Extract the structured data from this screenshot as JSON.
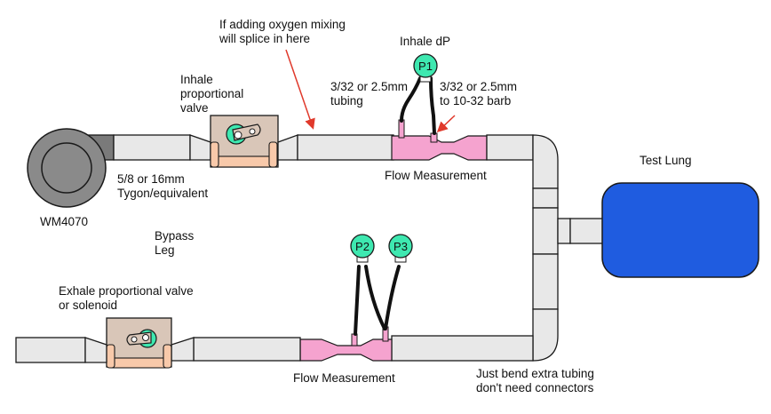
{
  "labels": {
    "oxygen_note_line1": "If adding oxygen mixing",
    "oxygen_note_line2": "will splice in here",
    "inhale_dp": "Inhale dP",
    "inhale_valve_line1": "Inhale",
    "inhale_valve_line2": "proportional",
    "inhale_valve_line3": "valve",
    "tubing_left_line1": "3/32 or 2.5mm",
    "tubing_left_line2": "tubing",
    "tubing_right_line1": "3/32 or 2.5mm",
    "tubing_right_line2": "to 10-32 barb",
    "flow_measurement_top": "Flow Measurement",
    "tygon_line1": "5/8 or 16mm",
    "tygon_line2": "Tygon/equivalent",
    "blower": "WM4070",
    "test_lung": "Test Lung",
    "bypass_line1": "Bypass",
    "bypass_line2": "Leg",
    "exhale_valve_line1": "Exhale proportional valve",
    "exhale_valve_line2": "or solenoid",
    "flow_measurement_bottom": "Flow Measurement",
    "bend_note_line1": "Just bend extra tubing",
    "bend_note_line2": "don't need connectors"
  },
  "sensors": {
    "p1": "P1",
    "p2": "P2",
    "p3": "P3"
  },
  "colors": {
    "pipe": "#e8e8e8",
    "flow_sensor": "#f5a3cf",
    "pressure_sensor": "#3ee8b0",
    "test_lung": "#1f5ce0",
    "blower": "#8a8a8a",
    "arrow": "#e0392b",
    "valve_body": "#d9c6b8",
    "valve_clamp": "#f8c9aa"
  }
}
